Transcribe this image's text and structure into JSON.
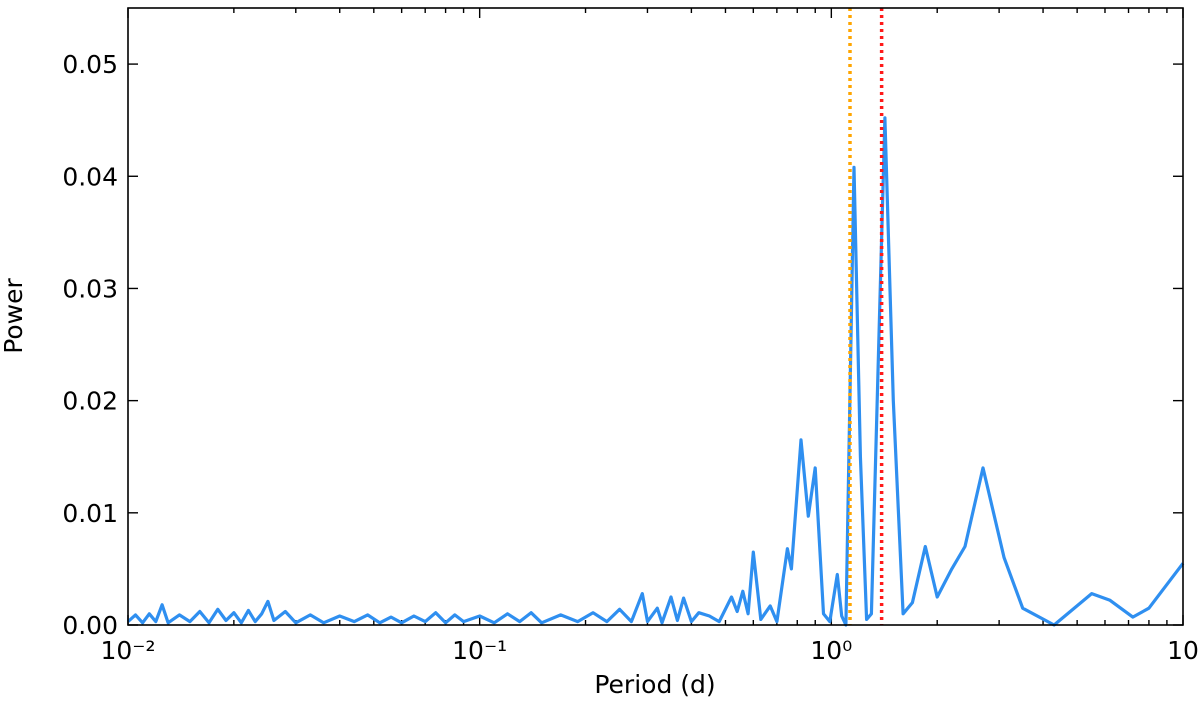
{
  "chart_data": {
    "type": "line",
    "xlabel": "Period (d)",
    "ylabel": "Power",
    "xscale": "log",
    "xlim": [
      0.01,
      10
    ],
    "ylim": [
      0,
      0.055
    ],
    "xticks": [
      {
        "value": 0.01,
        "label": "10⁻²"
      },
      {
        "value": 0.1,
        "label": "10⁻¹"
      },
      {
        "value": 1,
        "label": "10⁰"
      },
      10
    ],
    "yticks": [
      {
        "value": 0,
        "label": "0.00"
      },
      0.01,
      0.02,
      0.03,
      0.04,
      0.05
    ],
    "vlines": [
      {
        "x": 1.13,
        "color": "#ffa500"
      },
      {
        "x": 1.39,
        "color": "#ff1a1a"
      }
    ],
    "series": [
      {
        "name": "Power",
        "color": "#2f8ff0",
        "x": [
          0.01,
          0.0105,
          0.011,
          0.0115,
          0.012,
          0.0125,
          0.013,
          0.014,
          0.015,
          0.016,
          0.017,
          0.018,
          0.019,
          0.02,
          0.021,
          0.022,
          0.023,
          0.024,
          0.025,
          0.026,
          0.028,
          0.03,
          0.033,
          0.036,
          0.04,
          0.044,
          0.048,
          0.052,
          0.056,
          0.06,
          0.065,
          0.07,
          0.075,
          0.08,
          0.085,
          0.09,
          0.1,
          0.11,
          0.12,
          0.13,
          0.14,
          0.15,
          0.17,
          0.19,
          0.21,
          0.23,
          0.25,
          0.27,
          0.29,
          0.3,
          0.32,
          0.33,
          0.35,
          0.365,
          0.38,
          0.4,
          0.42,
          0.45,
          0.48,
          0.52,
          0.54,
          0.56,
          0.58,
          0.6,
          0.63,
          0.67,
          0.7,
          0.75,
          0.77,
          0.82,
          0.86,
          0.9,
          0.95,
          0.99,
          1.04,
          1.07,
          1.1,
          1.16,
          1.21,
          1.26,
          1.3,
          1.42,
          1.5,
          1.6,
          1.7,
          1.85,
          2.0,
          2.2,
          2.4,
          2.7,
          3.1,
          3.5,
          4.3,
          5.5,
          6.2,
          7.2,
          8.0,
          10.0
        ],
        "values": [
          0.0003,
          0.0009,
          0.0002,
          0.001,
          0.0003,
          0.0018,
          0.0002,
          0.0009,
          0.0003,
          0.0012,
          0.0002,
          0.0014,
          0.0004,
          0.0011,
          0.0002,
          0.0013,
          0.0003,
          0.001,
          0.0021,
          0.0004,
          0.0012,
          0.0002,
          0.0009,
          0.0002,
          0.0008,
          0.0003,
          0.0009,
          0.0002,
          0.0007,
          0.0002,
          0.0008,
          0.0003,
          0.0011,
          0.0002,
          0.0009,
          0.0003,
          0.0008,
          0.0002,
          0.001,
          0.0003,
          0.0011,
          0.0002,
          0.0009,
          0.0003,
          0.0011,
          0.0003,
          0.0014,
          0.0003,
          0.0028,
          0.0003,
          0.0015,
          0.0002,
          0.0025,
          0.0004,
          0.0024,
          0.0003,
          0.0011,
          0.0008,
          0.0003,
          0.0025,
          0.0012,
          0.003,
          0.001,
          0.0065,
          0.0005,
          0.0017,
          0.0003,
          0.0068,
          0.005,
          0.0165,
          0.0097,
          0.014,
          0.001,
          0.0003,
          0.0045,
          0.0008,
          0.0,
          0.0408,
          0.015,
          0.0005,
          0.001,
          0.0452,
          0.02,
          0.001,
          0.002,
          0.007,
          0.0025,
          0.005,
          0.007,
          0.014,
          0.006,
          0.0015,
          0.0,
          0.0028,
          0.0022,
          0.0007,
          0.0015,
          0.0055
        ]
      }
    ]
  }
}
